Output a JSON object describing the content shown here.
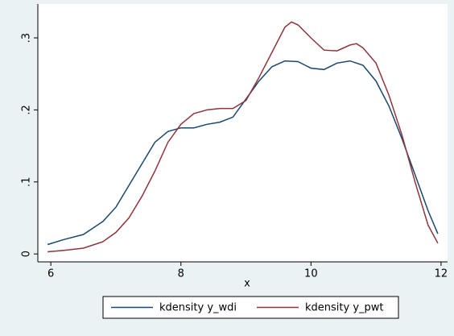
{
  "chart_data": {
    "type": "line",
    "xlabel": "x",
    "xlim": [
      5.8,
      12.1
    ],
    "ylim": [
      -0.011,
      0.347
    ],
    "xticks": [
      6,
      8,
      10,
      12
    ],
    "yticks": [
      0,
      {
        "value": 0.1,
        "label": ".1"
      },
      {
        "value": 0.2,
        "label": ".2"
      },
      {
        "value": 0.3,
        "label": ".3"
      }
    ],
    "legend": "bottom",
    "series": [
      {
        "name": "kdensity y_wdi",
        "color": "#1a476f",
        "x": [
          5.95,
          6.2,
          6.5,
          6.8,
          7.0,
          7.2,
          7.4,
          7.6,
          7.8,
          8.0,
          8.2,
          8.4,
          8.6,
          8.8,
          9.0,
          9.2,
          9.4,
          9.6,
          9.8,
          10.0,
          10.2,
          10.4,
          10.6,
          10.8,
          11.0,
          11.2,
          11.4,
          11.6,
          11.8,
          11.95
        ],
        "values": [
          0.013,
          0.02,
          0.027,
          0.045,
          0.065,
          0.095,
          0.125,
          0.155,
          0.17,
          0.175,
          0.175,
          0.18,
          0.183,
          0.19,
          0.215,
          0.24,
          0.26,
          0.268,
          0.267,
          0.258,
          0.256,
          0.265,
          0.268,
          0.262,
          0.24,
          0.205,
          0.16,
          0.11,
          0.06,
          0.028
        ]
      },
      {
        "name": "kdensity y_pwt",
        "color": "#90353b",
        "x": [
          5.95,
          6.2,
          6.5,
          6.8,
          7.0,
          7.2,
          7.4,
          7.6,
          7.8,
          8.0,
          8.2,
          8.4,
          8.6,
          8.8,
          9.0,
          9.2,
          9.4,
          9.6,
          9.7,
          9.8,
          10.0,
          10.2,
          10.4,
          10.6,
          10.7,
          10.8,
          11.0,
          11.2,
          11.4,
          11.6,
          11.8,
          11.95
        ],
        "values": [
          0.003,
          0.005,
          0.008,
          0.017,
          0.03,
          0.05,
          0.08,
          0.115,
          0.155,
          0.18,
          0.195,
          0.2,
          0.202,
          0.202,
          0.213,
          0.245,
          0.28,
          0.315,
          0.322,
          0.318,
          0.3,
          0.283,
          0.282,
          0.29,
          0.292,
          0.286,
          0.265,
          0.22,
          0.165,
          0.1,
          0.04,
          0.015
        ]
      }
    ]
  }
}
